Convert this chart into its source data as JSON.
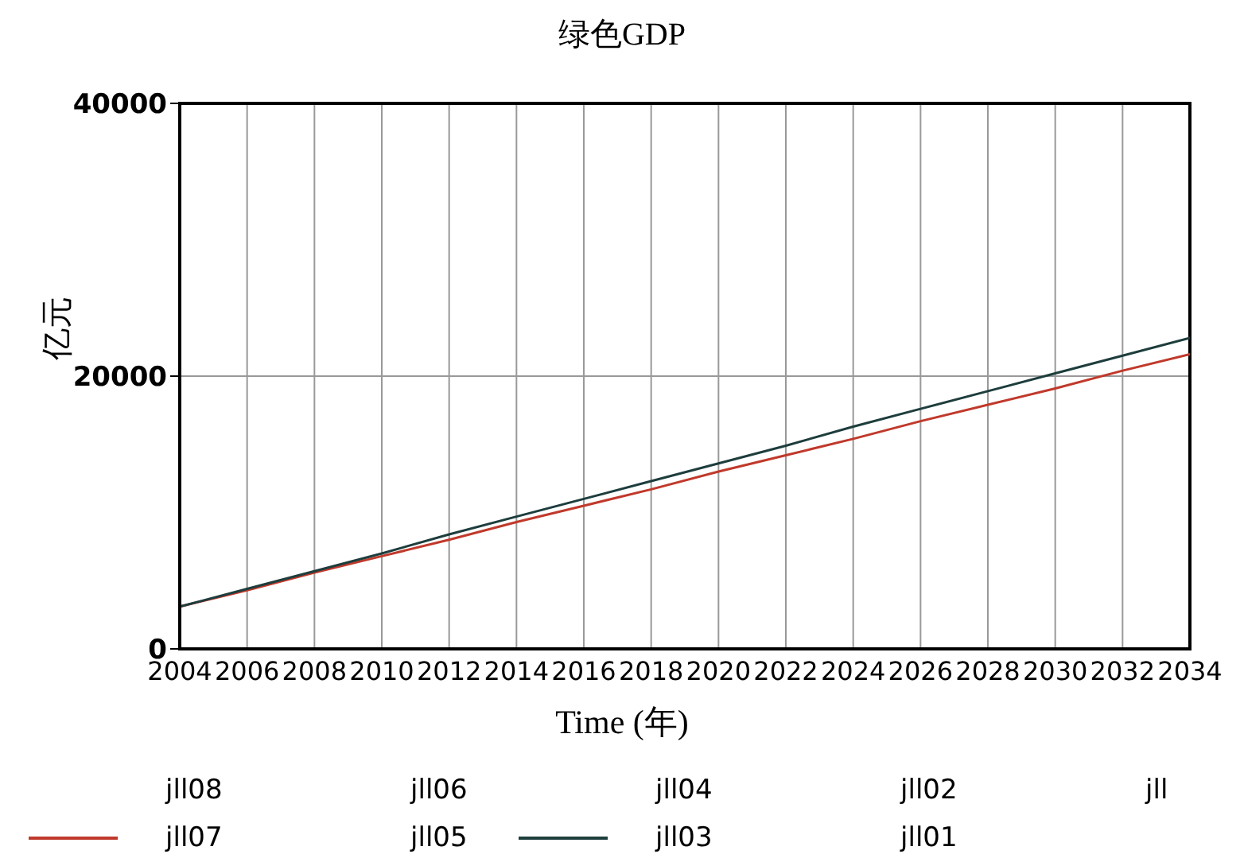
{
  "chart_data": {
    "type": "line",
    "title": "绿色GDP",
    "xlabel": "Time (年)",
    "ylabel": "亿元",
    "x": [
      2004,
      2006,
      2008,
      2010,
      2012,
      2014,
      2016,
      2018,
      2020,
      2022,
      2024,
      2026,
      2028,
      2030,
      2032,
      2034
    ],
    "xlim": [
      2004,
      2034
    ],
    "xticks": [
      2004,
      2006,
      2008,
      2010,
      2012,
      2014,
      2016,
      2018,
      2020,
      2022,
      2024,
      2026,
      2028,
      2030,
      2032,
      2034
    ],
    "ylim": [
      0,
      40000
    ],
    "yticks": [
      0,
      20000,
      40000
    ],
    "grid": true,
    "legend": "bottom",
    "marker": "none",
    "line_style": "solid",
    "series": [
      {
        "name": "jll08",
        "values": [
          null,
          null,
          null,
          null,
          null,
          null,
          null,
          null,
          null,
          null,
          null,
          null,
          null,
          null,
          null,
          null
        ]
      },
      {
        "name": "jll07",
        "color": "#c0392b",
        "values": [
          3100,
          4300,
          5600,
          6800,
          8000,
          9300,
          10500,
          11700,
          13000,
          14200,
          15400,
          16700,
          17900,
          19100,
          20400,
          21600
        ]
      },
      {
        "name": "jll06",
        "values": [
          null,
          null,
          null,
          null,
          null,
          null,
          null,
          null,
          null,
          null,
          null,
          null,
          null,
          null,
          null,
          null
        ]
      },
      {
        "name": "jll05",
        "values": [
          null,
          null,
          null,
          null,
          null,
          null,
          null,
          null,
          null,
          null,
          null,
          null,
          null,
          null,
          null,
          null
        ]
      },
      {
        "name": "jll04",
        "values": [
          null,
          null,
          null,
          null,
          null,
          null,
          null,
          null,
          null,
          null,
          null,
          null,
          null,
          null,
          null,
          null
        ]
      },
      {
        "name": "jll03",
        "color": "#1e3d3d",
        "values": [
          3100,
          4400,
          5700,
          7000,
          8400,
          9700,
          11000,
          12300,
          13600,
          14900,
          16300,
          17600,
          18900,
          20200,
          21500,
          22800
        ]
      },
      {
        "name": "jll02",
        "values": [
          null,
          null,
          null,
          null,
          null,
          null,
          null,
          null,
          null,
          null,
          null,
          null,
          null,
          null,
          null,
          null
        ]
      },
      {
        "name": "jll01",
        "values": [
          null,
          null,
          null,
          null,
          null,
          null,
          null,
          null,
          null,
          null,
          null,
          null,
          null,
          null,
          null,
          null
        ]
      },
      {
        "name": "jll",
        "values": [
          null,
          null,
          null,
          null,
          null,
          null,
          null,
          null,
          null,
          null,
          null,
          null,
          null,
          null,
          null,
          null
        ]
      }
    ]
  }
}
